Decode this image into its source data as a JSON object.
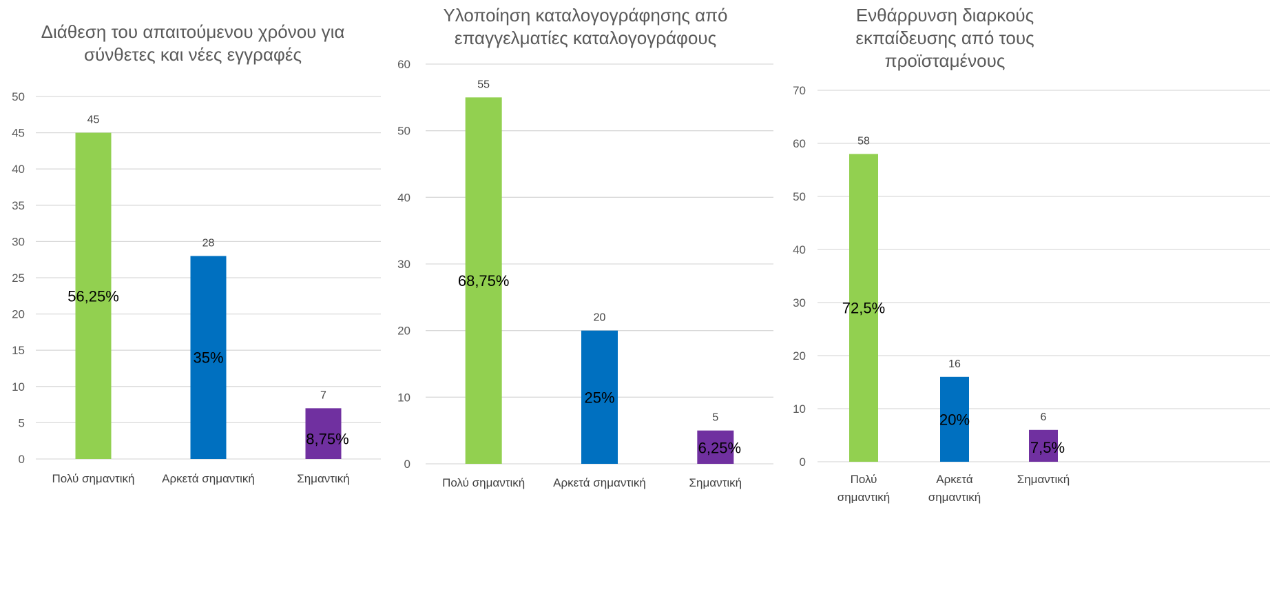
{
  "colors": {
    "green": "#92d050",
    "blue": "#0070c0",
    "purple": "#7030a0",
    "grid": "#d9d9d9",
    "text": "#595959"
  },
  "chart_data": [
    {
      "type": "bar",
      "title": "Διάθεση του απαιτούμενου χρόνου για σύνθετες και νέες εγγραφές",
      "categories": [
        "Πολύ σημαντική",
        "Αρκετά σημαντική",
        "Σημαντική"
      ],
      "values": [
        45,
        28,
        7
      ],
      "percent_labels": [
        "56,25%",
        "35%",
        "8,75%"
      ],
      "ylim": [
        0,
        50
      ],
      "yticks": [
        0,
        5,
        10,
        15,
        20,
        25,
        30,
        35,
        40,
        45,
        50
      ],
      "grid": true
    },
    {
      "type": "bar",
      "title": "Υλοποίηση καταλογογράφησης από επαγγελματίες καταλογογράφους",
      "categories": [
        "Πολύ σημαντική",
        "Αρκετά σημαντική",
        "Σημαντική"
      ],
      "values": [
        55,
        20,
        5
      ],
      "percent_labels": [
        "68,75%",
        "25%",
        "6,25%"
      ],
      "ylim": [
        0,
        60
      ],
      "yticks": [
        0,
        10,
        20,
        30,
        40,
        50,
        60
      ],
      "grid": true
    },
    {
      "type": "bar",
      "title": "Ενθάρρυνση διαρκούς εκπαίδευσης από τους προϊσταμένους",
      "categories": [
        "Πολύ σημαντική",
        "Αρκετά σημαντική",
        "Σημαντική"
      ],
      "values": [
        58,
        16,
        6
      ],
      "percent_labels": [
        "72,5%",
        "20%",
        "7,5%"
      ],
      "ylim": [
        0,
        70
      ],
      "yticks": [
        0,
        10,
        20,
        30,
        40,
        50,
        60,
        70
      ],
      "grid": true
    }
  ]
}
